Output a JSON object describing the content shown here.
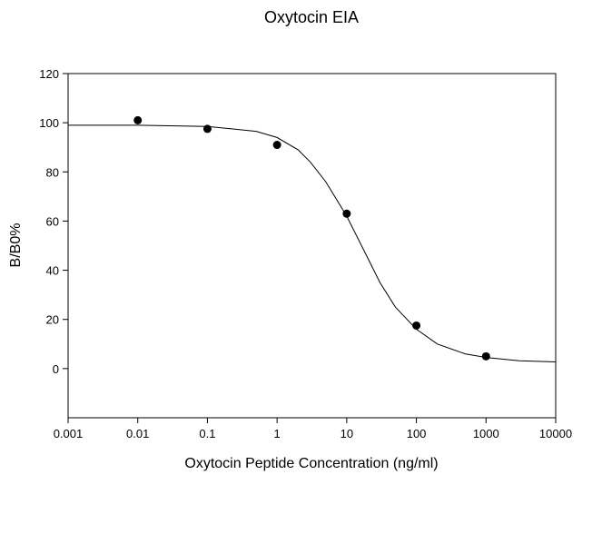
{
  "chart_data": {
    "type": "scatter",
    "title": "Oxytocin EIA",
    "xlabel": "Oxytocin Peptide Concentration (ng/ml)",
    "ylabel": "B/B0%",
    "xscale": "log",
    "xlim": [
      0.001,
      10000
    ],
    "xticks": [
      0.001,
      0.01,
      0.1,
      1,
      10,
      100,
      1000,
      10000
    ],
    "ylim": [
      -20,
      120
    ],
    "yticks": [
      0,
      20,
      40,
      60,
      80,
      100,
      120
    ],
    "series": [
      {
        "kind": "points",
        "color": "#000000",
        "x": [
          0.01,
          0.1,
          1,
          10,
          100,
          1000
        ],
        "values": [
          101,
          97.5,
          91,
          63,
          17.5,
          5
        ]
      },
      {
        "kind": "curve",
        "color": "#000000",
        "x": [
          0.001,
          0.01,
          0.1,
          0.5,
          1,
          2,
          3,
          5,
          10,
          20,
          30,
          50,
          100,
          200,
          500,
          1000,
          3000,
          10000
        ],
        "values": [
          99,
          99,
          98.5,
          96.5,
          94,
          89,
          84,
          76,
          62,
          45,
          35,
          25,
          16,
          10,
          6,
          4.5,
          3.2,
          2.7
        ]
      }
    ]
  }
}
